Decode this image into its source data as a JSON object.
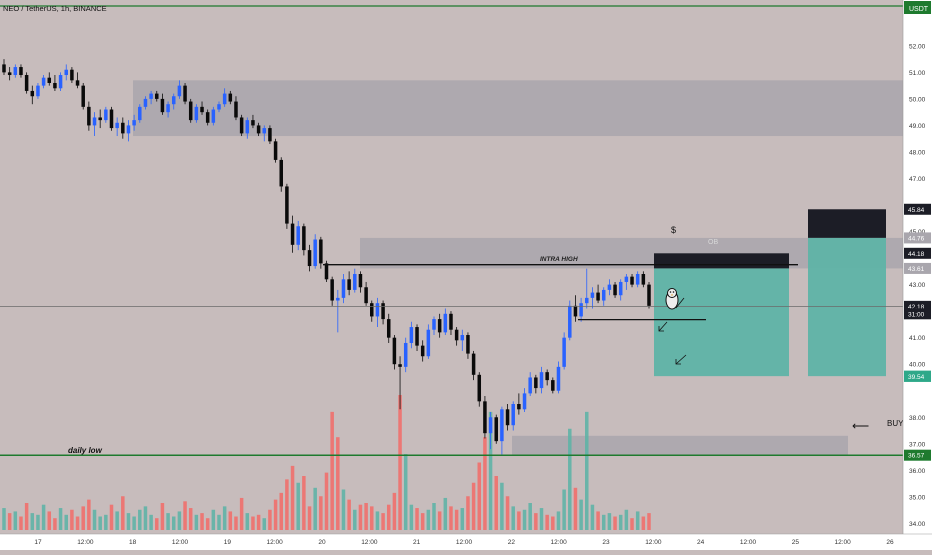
{
  "symbol_title": "NEO / TetherUS, 1h, BINANCE",
  "currency": "USDT",
  "colors": {
    "background": "#c7bcbc",
    "bull": "#2962ff",
    "bear": "#0a0a0a",
    "vol_up": "#5fb3a6",
    "vol_down": "#ef6f6c",
    "zone": "#a9a6ad",
    "tp_zone": "#5fb3a6",
    "sl_zone": "#1c1d26",
    "support": "#1e7a2e"
  },
  "chart_data": {
    "type": "candlestick",
    "y_range": [
      33.6,
      53.2
    ],
    "x_axis_ticks": [
      "17",
      "12:00",
      "18",
      "12:00",
      "19",
      "12:00",
      "20",
      "12:00",
      "21",
      "12:00",
      "22",
      "12:00",
      "23",
      "12:00",
      "24",
      "12:00",
      "25",
      "12:00",
      "26"
    ],
    "y_axis_ticks": [
      "52.00",
      "51.00",
      "50.00",
      "49.00",
      "48.00",
      "47.00",
      "45.00",
      "43.00",
      "41.00",
      "40.00",
      "38.00",
      "37.00",
      "36.00",
      "35.00",
      "34.00"
    ],
    "price_badges": [
      {
        "label": "45.84",
        "value": 45.84,
        "color": "#1c1d26"
      },
      {
        "label": "44.76",
        "value": 44.76,
        "color": "#a9a6ad"
      },
      {
        "label": "44.18",
        "value": 44.18,
        "color": "#1c1d26"
      },
      {
        "label": "43.61",
        "value": 43.61,
        "color": "#a9a6ad"
      },
      {
        "label": "42.18",
        "value": 42.18,
        "color": "#1c1d26"
      },
      {
        "label": "31:00",
        "value": 41.9,
        "color": "#1c1d26"
      },
      {
        "label": "39.55",
        "value": 39.55,
        "color": "#2ea889"
      },
      {
        "label": "39.54",
        "value": 39.54,
        "color": "#2ea889"
      },
      {
        "label": "36.57",
        "value": 36.57,
        "color": "#1e7a2e"
      }
    ],
    "support_line": 36.57,
    "current_price": 42.18,
    "resistance_line": 43.75,
    "zones": [
      {
        "name": "upper-supply-zone",
        "y_top": 50.7,
        "y_bottom": 48.6
      },
      {
        "name": "ob-zone",
        "y_top": 44.76,
        "y_bottom": 43.61
      },
      {
        "name": "demand-zone",
        "y_top": 37.3,
        "y_bottom": 36.57
      }
    ],
    "candles": [
      [
        51.3,
        51.5,
        50.9,
        51.0
      ],
      [
        51.0,
        51.2,
        50.7,
        50.9
      ],
      [
        50.9,
        51.3,
        50.8,
        51.2
      ],
      [
        51.2,
        51.3,
        50.8,
        50.9
      ],
      [
        50.9,
        51.0,
        50.2,
        50.3
      ],
      [
        50.3,
        50.5,
        49.8,
        50.1
      ],
      [
        50.1,
        50.6,
        50.0,
        50.5
      ],
      [
        50.5,
        50.9,
        50.4,
        50.8
      ],
      [
        50.8,
        51.0,
        50.5,
        50.6
      ],
      [
        50.6,
        50.9,
        50.3,
        50.4
      ],
      [
        50.4,
        51.0,
        50.3,
        50.9
      ],
      [
        50.9,
        51.3,
        50.7,
        51.1
      ],
      [
        51.1,
        51.2,
        50.6,
        50.7
      ],
      [
        50.7,
        51.0,
        50.4,
        50.5
      ],
      [
        50.5,
        50.6,
        49.6,
        49.7
      ],
      [
        49.7,
        49.9,
        48.8,
        49.0
      ],
      [
        49.0,
        49.5,
        48.6,
        49.3
      ],
      [
        49.3,
        49.6,
        48.9,
        49.2
      ],
      [
        49.2,
        49.7,
        49.1,
        49.6
      ],
      [
        49.6,
        49.7,
        48.8,
        48.9
      ],
      [
        48.9,
        49.3,
        48.6,
        49.1
      ],
      [
        49.1,
        49.3,
        48.5,
        48.7
      ],
      [
        48.7,
        49.2,
        48.4,
        49.0
      ],
      [
        49.0,
        49.4,
        48.8,
        49.2
      ],
      [
        49.2,
        49.8,
        49.1,
        49.7
      ],
      [
        49.7,
        50.1,
        49.6,
        50.0
      ],
      [
        50.0,
        50.3,
        49.8,
        50.2
      ],
      [
        50.2,
        50.3,
        49.9,
        50.0
      ],
      [
        50.0,
        50.2,
        49.4,
        49.5
      ],
      [
        49.5,
        49.9,
        49.3,
        49.8
      ],
      [
        49.8,
        50.2,
        49.6,
        50.1
      ],
      [
        50.1,
        50.7,
        50.0,
        50.5
      ],
      [
        50.5,
        50.6,
        49.8,
        49.9
      ],
      [
        49.9,
        50.0,
        49.1,
        49.2
      ],
      [
        49.2,
        49.8,
        49.1,
        49.7
      ],
      [
        49.7,
        49.9,
        49.4,
        49.5
      ],
      [
        49.5,
        49.6,
        49.0,
        49.1
      ],
      [
        49.1,
        49.7,
        49.0,
        49.6
      ],
      [
        49.6,
        49.9,
        49.5,
        49.8
      ],
      [
        49.8,
        50.4,
        49.7,
        50.2
      ],
      [
        50.2,
        50.3,
        49.8,
        49.9
      ],
      [
        49.9,
        50.1,
        49.2,
        49.3
      ],
      [
        49.3,
        49.4,
        48.6,
        48.7
      ],
      [
        48.7,
        49.3,
        48.5,
        49.2
      ],
      [
        49.2,
        49.4,
        48.9,
        49.0
      ],
      [
        49.0,
        49.1,
        48.6,
        48.7
      ],
      [
        48.7,
        49.0,
        48.4,
        48.9
      ],
      [
        48.9,
        49.0,
        48.3,
        48.4
      ],
      [
        48.4,
        48.5,
        47.6,
        47.7
      ],
      [
        47.7,
        47.8,
        46.5,
        46.7
      ],
      [
        46.7,
        46.8,
        45.1,
        45.3
      ],
      [
        45.3,
        45.6,
        44.2,
        44.5
      ],
      [
        44.5,
        45.4,
        44.3,
        45.2
      ],
      [
        45.2,
        45.3,
        44.1,
        44.3
      ],
      [
        44.3,
        44.5,
        43.5,
        43.7
      ],
      [
        43.7,
        44.9,
        43.6,
        44.7
      ],
      [
        44.7,
        44.8,
        43.6,
        43.8
      ],
      [
        43.8,
        43.9,
        43.1,
        43.2
      ],
      [
        43.2,
        43.3,
        42.2,
        42.4
      ],
      [
        42.4,
        42.8,
        41.2,
        42.5
      ],
      [
        42.5,
        43.4,
        42.3,
        43.2
      ],
      [
        43.2,
        43.5,
        42.6,
        42.8
      ],
      [
        42.8,
        43.6,
        42.7,
        43.4
      ],
      [
        43.4,
        43.5,
        42.7,
        42.9
      ],
      [
        42.9,
        43.1,
        42.2,
        42.3
      ],
      [
        42.3,
        42.4,
        41.6,
        41.8
      ],
      [
        41.8,
        42.5,
        41.4,
        42.3
      ],
      [
        42.3,
        42.4,
        41.5,
        41.7
      ],
      [
        41.7,
        41.9,
        40.8,
        41.0
      ],
      [
        41.0,
        41.1,
        39.8,
        40.0
      ],
      [
        40.0,
        40.3,
        38.3,
        39.9
      ],
      [
        39.9,
        41.0,
        39.7,
        40.8
      ],
      [
        40.8,
        41.6,
        40.6,
        41.4
      ],
      [
        41.4,
        41.5,
        40.5,
        40.7
      ],
      [
        40.7,
        40.9,
        40.1,
        40.3
      ],
      [
        40.3,
        41.5,
        40.2,
        41.3
      ],
      [
        41.3,
        41.8,
        41.1,
        41.7
      ],
      [
        41.7,
        41.9,
        41.0,
        41.2
      ],
      [
        41.2,
        42.1,
        41.1,
        41.9
      ],
      [
        41.9,
        42.0,
        41.1,
        41.3
      ],
      [
        41.3,
        41.4,
        40.7,
        40.9
      ],
      [
        40.9,
        41.3,
        40.5,
        41.1
      ],
      [
        41.1,
        41.2,
        40.2,
        40.4
      ],
      [
        40.4,
        40.5,
        39.4,
        39.6
      ],
      [
        39.6,
        39.7,
        38.4,
        38.6
      ],
      [
        38.6,
        38.8,
        37.2,
        37.4
      ],
      [
        37.4,
        38.2,
        36.8,
        38.0
      ],
      [
        38.0,
        38.1,
        37.0,
        37.1
      ],
      [
        37.1,
        38.4,
        36.6,
        38.3
      ],
      [
        38.3,
        38.5,
        37.5,
        37.7
      ],
      [
        37.7,
        38.6,
        37.5,
        38.5
      ],
      [
        38.5,
        38.9,
        38.1,
        38.3
      ],
      [
        38.3,
        39.1,
        38.2,
        38.9
      ],
      [
        38.9,
        39.7,
        38.8,
        39.5
      ],
      [
        39.5,
        39.6,
        38.9,
        39.1
      ],
      [
        39.1,
        39.9,
        38.9,
        39.7
      ],
      [
        39.7,
        39.8,
        39.2,
        39.4
      ],
      [
        39.4,
        39.5,
        38.9,
        39.0
      ],
      [
        39.0,
        40.1,
        38.9,
        39.9
      ],
      [
        39.9,
        41.2,
        39.8,
        41.0
      ],
      [
        41.0,
        42.4,
        40.9,
        42.2
      ],
      [
        42.2,
        42.6,
        41.6,
        41.8
      ],
      [
        41.8,
        42.5,
        41.6,
        42.3
      ],
      [
        42.3,
        43.6,
        42.1,
        42.5
      ],
      [
        42.5,
        42.9,
        42.1,
        42.7
      ],
      [
        42.7,
        43.0,
        42.3,
        42.4
      ],
      [
        42.4,
        42.9,
        42.2,
        42.8
      ],
      [
        42.8,
        43.2,
        42.6,
        43.0
      ],
      [
        43.0,
        43.1,
        42.5,
        42.6
      ],
      [
        42.6,
        43.2,
        42.4,
        43.1
      ],
      [
        43.1,
        43.4,
        42.8,
        43.3
      ],
      [
        43.3,
        43.4,
        42.9,
        43.0
      ],
      [
        43.0,
        43.5,
        42.9,
        43.4
      ],
      [
        43.4,
        43.5,
        42.9,
        43.0
      ],
      [
        43.0,
        43.1,
        42.1,
        42.2
      ]
    ],
    "volumes": [
      [
        13,
        1
      ],
      [
        10,
        0
      ],
      [
        11,
        1
      ],
      [
        8,
        0
      ],
      [
        16,
        0
      ],
      [
        10,
        1
      ],
      [
        9,
        1
      ],
      [
        15,
        1
      ],
      [
        11,
        0
      ],
      [
        7,
        0
      ],
      [
        13,
        1
      ],
      [
        9,
        1
      ],
      [
        12,
        0
      ],
      [
        8,
        0
      ],
      [
        14,
        0
      ],
      [
        18,
        0
      ],
      [
        12,
        1
      ],
      [
        8,
        1
      ],
      [
        9,
        1
      ],
      [
        15,
        0
      ],
      [
        11,
        1
      ],
      [
        20,
        0
      ],
      [
        10,
        1
      ],
      [
        8,
        1
      ],
      [
        12,
        1
      ],
      [
        14,
        1
      ],
      [
        9,
        1
      ],
      [
        7,
        0
      ],
      [
        16,
        0
      ],
      [
        10,
        1
      ],
      [
        8,
        1
      ],
      [
        11,
        1
      ],
      [
        17,
        0
      ],
      [
        13,
        0
      ],
      [
        9,
        1
      ],
      [
        10,
        0
      ],
      [
        7,
        0
      ],
      [
        12,
        1
      ],
      [
        9,
        1
      ],
      [
        14,
        1
      ],
      [
        11,
        0
      ],
      [
        8,
        0
      ],
      [
        19,
        0
      ],
      [
        10,
        1
      ],
      [
        8,
        0
      ],
      [
        9,
        0
      ],
      [
        7,
        1
      ],
      [
        12,
        0
      ],
      [
        18,
        0
      ],
      [
        22,
        0
      ],
      [
        30,
        0
      ],
      [
        38,
        0
      ],
      [
        28,
        1
      ],
      [
        32,
        0
      ],
      [
        14,
        0
      ],
      [
        25,
        1
      ],
      [
        20,
        0
      ],
      [
        34,
        0
      ],
      [
        70,
        0
      ],
      [
        55,
        0
      ],
      [
        24,
        1
      ],
      [
        18,
        0
      ],
      [
        12,
        1
      ],
      [
        15,
        0
      ],
      [
        16,
        0
      ],
      [
        14,
        0
      ],
      [
        11,
        1
      ],
      [
        10,
        0
      ],
      [
        15,
        0
      ],
      [
        22,
        0
      ],
      [
        80,
        0
      ],
      [
        45,
        1
      ],
      [
        15,
        1
      ],
      [
        13,
        0
      ],
      [
        10,
        0
      ],
      [
        12,
        1
      ],
      [
        16,
        1
      ],
      [
        11,
        0
      ],
      [
        19,
        1
      ],
      [
        14,
        0
      ],
      [
        12,
        0
      ],
      [
        13,
        1
      ],
      [
        20,
        0
      ],
      [
        28,
        0
      ],
      [
        40,
        0
      ],
      [
        55,
        0
      ],
      [
        70,
        1
      ],
      [
        32,
        0
      ],
      [
        28,
        1
      ],
      [
        20,
        0
      ],
      [
        14,
        1
      ],
      [
        11,
        0
      ],
      [
        12,
        1
      ],
      [
        16,
        1
      ],
      [
        10,
        0
      ],
      [
        13,
        1
      ],
      [
        9,
        0
      ],
      [
        8,
        0
      ],
      [
        11,
        1
      ],
      [
        24,
        1
      ],
      [
        60,
        1
      ],
      [
        25,
        0
      ],
      [
        18,
        1
      ],
      [
        70,
        1
      ],
      [
        15,
        1
      ],
      [
        11,
        0
      ],
      [
        9,
        1
      ],
      [
        10,
        1
      ],
      [
        8,
        0
      ],
      [
        9,
        1
      ],
      [
        12,
        1
      ],
      [
        7,
        0
      ],
      [
        11,
        1
      ],
      [
        8,
        0
      ],
      [
        10,
        0
      ]
    ]
  },
  "labels": {
    "daily_low": "daily low",
    "intra_high": "INTRA HIGH",
    "ob": "OB",
    "dollar": "$",
    "buy": "BUY",
    "buy_arrow": "⟵"
  }
}
